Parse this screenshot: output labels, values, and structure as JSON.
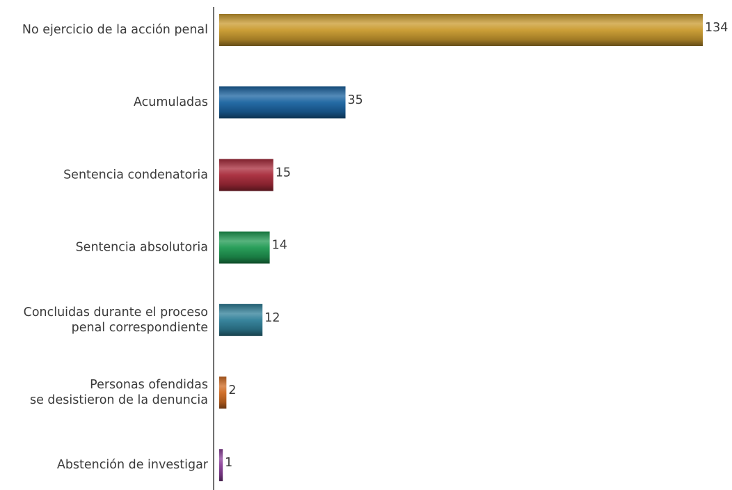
{
  "chart_data": {
    "type": "bar",
    "orientation": "horizontal",
    "categories": [
      "No ejercicio de la acción penal",
      "Acumuladas",
      "Sentencia condenatoria",
      "Sentencia absolutoria",
      "Concluidas durante el proceso\npenal correspondiente",
      "Personas ofendidas\nse desistieron de la denuncia",
      "Abstención de investigar"
    ],
    "values": [
      134,
      35,
      15,
      14,
      12,
      2,
      1
    ],
    "value_labels": [
      "134",
      "35",
      "15",
      "14",
      "12",
      "2",
      "1"
    ],
    "colors": [
      "#c99a2e",
      "#1a63a0",
      "#a82a3a",
      "#1f9a52",
      "#2f7f98",
      "#cf6a22",
      "#8a3f98"
    ],
    "xlim": [
      0,
      134
    ],
    "title": "",
    "xlabel": "",
    "ylabel": "",
    "grid": false,
    "legend": "none"
  }
}
